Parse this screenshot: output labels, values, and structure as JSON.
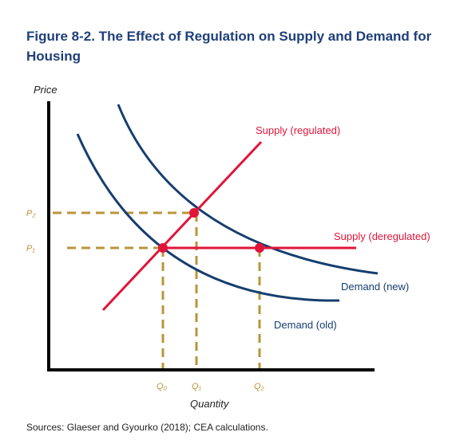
{
  "title": "Figure 8-2. The Effect of Regulation on Supply and Demand for Housing",
  "source": "Sources: Glaeser and Gyourko (2018); CEA calculations.",
  "colors": {
    "title": "#1f3f7a",
    "demand": "#163e6e",
    "supply": "#e0153a",
    "guide": "#b8963a",
    "axis": "#000000",
    "point": "#e0153a"
  },
  "diagram": {
    "y_axis_label": "Price",
    "x_axis_label": "Quantity",
    "price_labels": {
      "p1": "P₁",
      "p2": "P₂"
    },
    "quantity_labels": {
      "q0": "Q₀",
      "q1": "Q₁",
      "q2": "Q₂"
    },
    "curves": {
      "supply_regulated": "Supply (regulated)",
      "supply_deregulated": "Supply (deregulated)",
      "demand_new": "Demand (new)",
      "demand_old": "Demand (old)"
    }
  }
}
